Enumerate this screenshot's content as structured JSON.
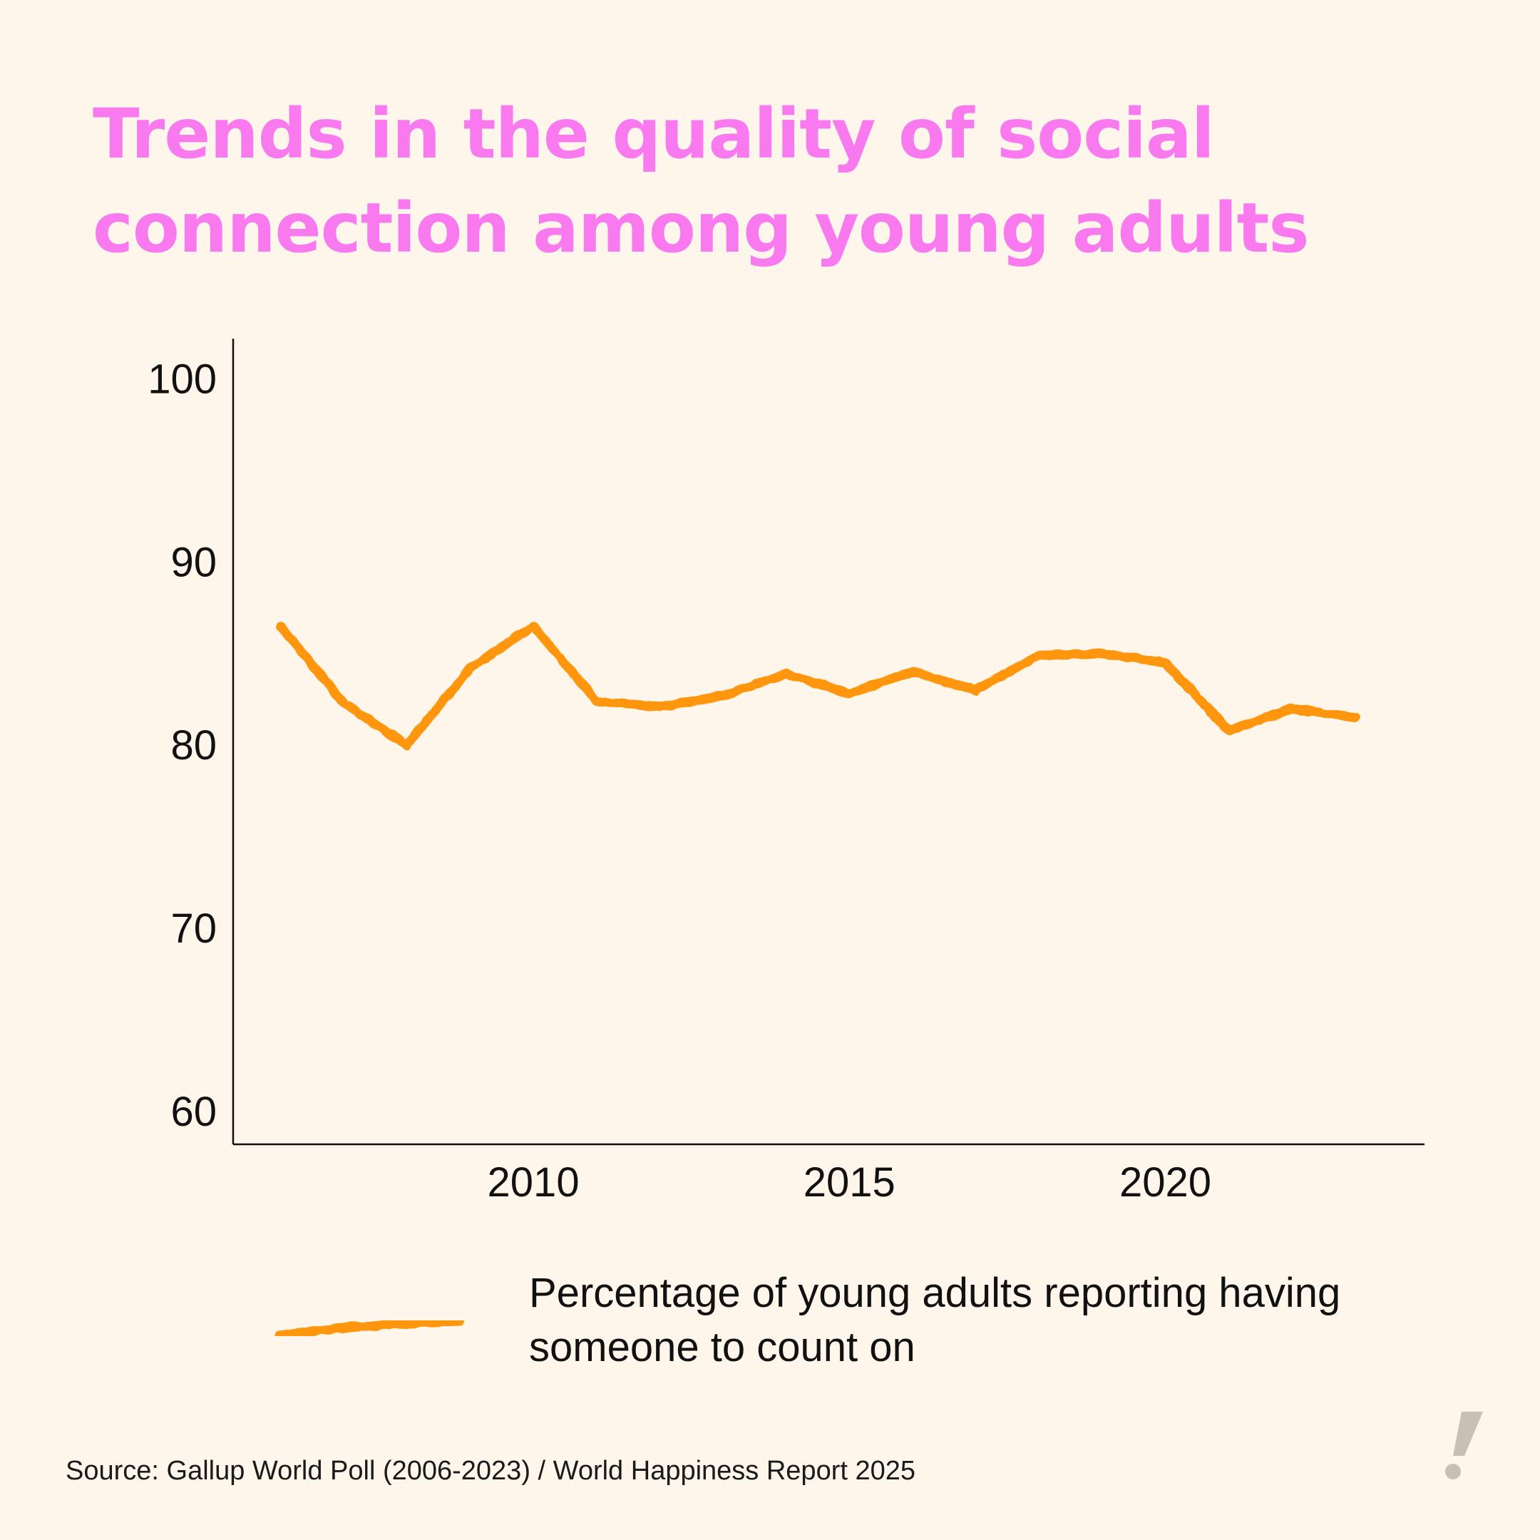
{
  "title": "Trends in the quality of social connection among young adults",
  "colors": {
    "background": "#FEF5EB",
    "title": "#F97AEF",
    "line": "#FF960F",
    "axis": "#111111",
    "brand_mark": "#C9BFB6"
  },
  "chart_data": {
    "type": "line",
    "title": "Trends in the quality of social connection among young adults",
    "xlabel": "",
    "ylabel": "",
    "xlim": [
      2005.25,
      2024.1
    ],
    "ylim": [
      58.2,
      102.2
    ],
    "xticks": [
      2010,
      2015,
      2020
    ],
    "yticks": [
      60,
      70,
      80,
      90,
      100
    ],
    "grid": false,
    "legend_position": "bottom",
    "series": [
      {
        "name": "Percentage of young adults reporting having someone to count on",
        "x": [
          2006,
          2007,
          2008,
          2009,
          2010,
          2011,
          2012,
          2013,
          2014,
          2015,
          2016,
          2017,
          2018,
          2019,
          2020,
          2021,
          2022,
          2023
        ],
        "values": [
          86.5,
          82.3,
          80.0,
          84.2,
          86.5,
          82.4,
          82.1,
          82.7,
          83.9,
          82.8,
          84.0,
          83.0,
          84.9,
          85.0,
          84.5,
          80.8,
          82.0,
          81.5
        ]
      }
    ]
  },
  "legend": {
    "label": "Percentage of young adults reporting having someone to count on"
  },
  "source": "Source: Gallup World Poll (2006-2023) / World Happiness Report 2025",
  "brand_icon": "exclamation-mark-icon"
}
